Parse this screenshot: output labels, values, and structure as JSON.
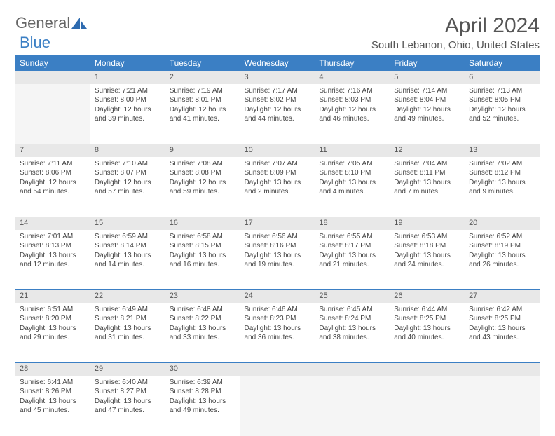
{
  "logo": {
    "text1": "General",
    "text2": "Blue"
  },
  "title": "April 2024",
  "location": "South Lebanon, Ohio, United States",
  "colors": {
    "header_bg": "#3b7fc4",
    "header_text": "#ffffff",
    "daynum_bg": "#e8e8e8",
    "empty_bg": "#f5f5f5",
    "border": "#3b7fc4",
    "body_text": "#444444"
  },
  "weekdays": [
    "Sunday",
    "Monday",
    "Tuesday",
    "Wednesday",
    "Thursday",
    "Friday",
    "Saturday"
  ],
  "weeks": [
    [
      null,
      {
        "d": "1",
        "sr": "7:21 AM",
        "ss": "8:00 PM",
        "dl": "12 hours and 39 minutes."
      },
      {
        "d": "2",
        "sr": "7:19 AM",
        "ss": "8:01 PM",
        "dl": "12 hours and 41 minutes."
      },
      {
        "d": "3",
        "sr": "7:17 AM",
        "ss": "8:02 PM",
        "dl": "12 hours and 44 minutes."
      },
      {
        "d": "4",
        "sr": "7:16 AM",
        "ss": "8:03 PM",
        "dl": "12 hours and 46 minutes."
      },
      {
        "d": "5",
        "sr": "7:14 AM",
        "ss": "8:04 PM",
        "dl": "12 hours and 49 minutes."
      },
      {
        "d": "6",
        "sr": "7:13 AM",
        "ss": "8:05 PM",
        "dl": "12 hours and 52 minutes."
      }
    ],
    [
      {
        "d": "7",
        "sr": "7:11 AM",
        "ss": "8:06 PM",
        "dl": "12 hours and 54 minutes."
      },
      {
        "d": "8",
        "sr": "7:10 AM",
        "ss": "8:07 PM",
        "dl": "12 hours and 57 minutes."
      },
      {
        "d": "9",
        "sr": "7:08 AM",
        "ss": "8:08 PM",
        "dl": "12 hours and 59 minutes."
      },
      {
        "d": "10",
        "sr": "7:07 AM",
        "ss": "8:09 PM",
        "dl": "13 hours and 2 minutes."
      },
      {
        "d": "11",
        "sr": "7:05 AM",
        "ss": "8:10 PM",
        "dl": "13 hours and 4 minutes."
      },
      {
        "d": "12",
        "sr": "7:04 AM",
        "ss": "8:11 PM",
        "dl": "13 hours and 7 minutes."
      },
      {
        "d": "13",
        "sr": "7:02 AM",
        "ss": "8:12 PM",
        "dl": "13 hours and 9 minutes."
      }
    ],
    [
      {
        "d": "14",
        "sr": "7:01 AM",
        "ss": "8:13 PM",
        "dl": "13 hours and 12 minutes."
      },
      {
        "d": "15",
        "sr": "6:59 AM",
        "ss": "8:14 PM",
        "dl": "13 hours and 14 minutes."
      },
      {
        "d": "16",
        "sr": "6:58 AM",
        "ss": "8:15 PM",
        "dl": "13 hours and 16 minutes."
      },
      {
        "d": "17",
        "sr": "6:56 AM",
        "ss": "8:16 PM",
        "dl": "13 hours and 19 minutes."
      },
      {
        "d": "18",
        "sr": "6:55 AM",
        "ss": "8:17 PM",
        "dl": "13 hours and 21 minutes."
      },
      {
        "d": "19",
        "sr": "6:53 AM",
        "ss": "8:18 PM",
        "dl": "13 hours and 24 minutes."
      },
      {
        "d": "20",
        "sr": "6:52 AM",
        "ss": "8:19 PM",
        "dl": "13 hours and 26 minutes."
      }
    ],
    [
      {
        "d": "21",
        "sr": "6:51 AM",
        "ss": "8:20 PM",
        "dl": "13 hours and 29 minutes."
      },
      {
        "d": "22",
        "sr": "6:49 AM",
        "ss": "8:21 PM",
        "dl": "13 hours and 31 minutes."
      },
      {
        "d": "23",
        "sr": "6:48 AM",
        "ss": "8:22 PM",
        "dl": "13 hours and 33 minutes."
      },
      {
        "d": "24",
        "sr": "6:46 AM",
        "ss": "8:23 PM",
        "dl": "13 hours and 36 minutes."
      },
      {
        "d": "25",
        "sr": "6:45 AM",
        "ss": "8:24 PM",
        "dl": "13 hours and 38 minutes."
      },
      {
        "d": "26",
        "sr": "6:44 AM",
        "ss": "8:25 PM",
        "dl": "13 hours and 40 minutes."
      },
      {
        "d": "27",
        "sr": "6:42 AM",
        "ss": "8:25 PM",
        "dl": "13 hours and 43 minutes."
      }
    ],
    [
      {
        "d": "28",
        "sr": "6:41 AM",
        "ss": "8:26 PM",
        "dl": "13 hours and 45 minutes."
      },
      {
        "d": "29",
        "sr": "6:40 AM",
        "ss": "8:27 PM",
        "dl": "13 hours and 47 minutes."
      },
      {
        "d": "30",
        "sr": "6:39 AM",
        "ss": "8:28 PM",
        "dl": "13 hours and 49 minutes."
      },
      null,
      null,
      null,
      null
    ]
  ],
  "labels": {
    "sunrise": "Sunrise:",
    "sunset": "Sunset:",
    "daylight": "Daylight:"
  }
}
